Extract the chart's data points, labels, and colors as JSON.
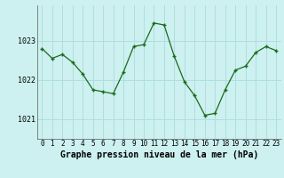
{
  "x": [
    0,
    1,
    2,
    3,
    4,
    5,
    6,
    7,
    8,
    9,
    10,
    11,
    12,
    13,
    14,
    15,
    16,
    17,
    18,
    19,
    20,
    21,
    22,
    23
  ],
  "y": [
    1022.8,
    1022.55,
    1022.65,
    1022.45,
    1022.15,
    1021.75,
    1021.7,
    1021.65,
    1022.2,
    1022.85,
    1022.9,
    1023.45,
    1023.4,
    1022.6,
    1021.95,
    1021.6,
    1021.1,
    1021.15,
    1021.75,
    1022.25,
    1022.35,
    1022.7,
    1022.85,
    1022.75
  ],
  "line_color": "#1a6b1a",
  "marker": "+",
  "bg_color": "#cdf0f0",
  "grid_color": "#b0dede",
  "xlabel": "Graphe pression niveau de la mer (hPa)",
  "xlabel_fontsize": 7,
  "ylabel_ticks": [
    1021,
    1022,
    1023
  ],
  "ylim": [
    1020.5,
    1023.9
  ],
  "xlim": [
    -0.5,
    23.5
  ],
  "tick_fontsize": 5.5,
  "ytick_fontsize": 6.0
}
